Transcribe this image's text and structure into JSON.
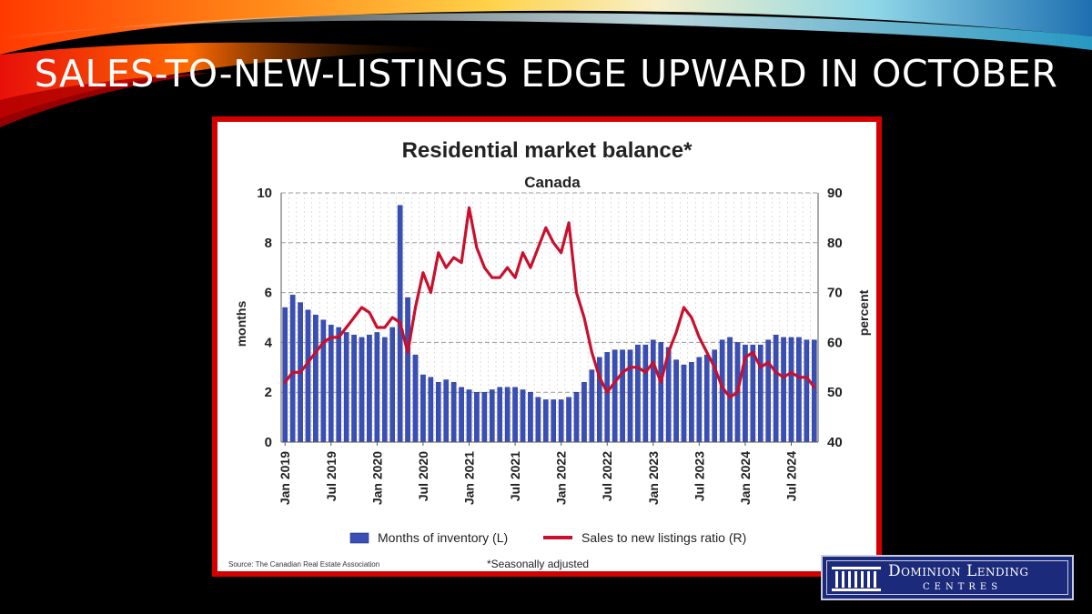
{
  "slide": {
    "title": "SALES-TO-NEW-LISTINGS EDGE UPWARD IN OCTOBER",
    "frame_color": "#d40000"
  },
  "logo": {
    "name": "Dominion Lending",
    "sub": "CENTRES"
  },
  "chart_data": {
    "type": "bar",
    "title": "Residential market balance*",
    "subtitle": "Canada",
    "ylabel_left": "months",
    "ylabel_right": "percent",
    "ylim_left": [
      0,
      10
    ],
    "ylim_right": [
      40,
      90
    ],
    "yticks_left": [
      "0",
      "2",
      "4",
      "6",
      "8",
      "10"
    ],
    "yticks_right": [
      "40",
      "50",
      "60",
      "70",
      "80",
      "90"
    ],
    "grid": true,
    "legend_position": "bottom",
    "x_tick_labels": [
      "Jan 2019",
      "Jul 2019",
      "Jan 2020",
      "Jul 2020",
      "Jan 2021",
      "Jul 2021",
      "Jan 2022",
      "Jul 2022",
      "Jan 2023",
      "Jul 2023",
      "Jan 2024",
      "Jul 2024"
    ],
    "x_tick_positions": [
      0,
      6,
      12,
      18,
      24,
      30,
      36,
      42,
      48,
      54,
      60,
      66
    ],
    "source": "Source: The Canadian Real Estate Association",
    "footnote": "*Seasonally adjusted",
    "series": [
      {
        "name": "Months of inventory (L)",
        "kind": "bar",
        "axis": "left",
        "color": "#3a4fb5",
        "values": [
          5.4,
          5.9,
          5.6,
          5.3,
          5.1,
          4.9,
          4.7,
          4.6,
          4.4,
          4.3,
          4.2,
          4.3,
          4.4,
          4.2,
          4.6,
          9.5,
          5.8,
          3.5,
          2.7,
          2.6,
          2.4,
          2.5,
          2.4,
          2.2,
          2.1,
          2.0,
          2.0,
          2.1,
          2.2,
          2.2,
          2.2,
          2.1,
          2.0,
          1.8,
          1.7,
          1.7,
          1.7,
          1.8,
          2.0,
          2.4,
          2.9,
          3.4,
          3.6,
          3.7,
          3.7,
          3.7,
          3.9,
          3.9,
          4.1,
          4.0,
          3.8,
          3.3,
          3.1,
          3.2,
          3.4,
          3.5,
          3.7,
          4.1,
          4.2,
          4.0,
          3.9,
          3.9,
          3.9,
          4.1,
          4.3,
          4.2,
          4.2,
          4.2,
          4.1,
          4.1
        ]
      },
      {
        "name": "Sales to new listings ratio (R)",
        "kind": "line",
        "axis": "right",
        "color": "#c8102e",
        "values": [
          52,
          54,
          54,
          56,
          58,
          60,
          61,
          61,
          63,
          65,
          67,
          66,
          63,
          63,
          65,
          64,
          58,
          67,
          74,
          70,
          78,
          75,
          77,
          76,
          87,
          79,
          75,
          73,
          73,
          75,
          73,
          78,
          75,
          79,
          83,
          80,
          78,
          84,
          70,
          65,
          58,
          53,
          50,
          52,
          54,
          55,
          55,
          54,
          56,
          52,
          58,
          62,
          67,
          65,
          61,
          58,
          55,
          51,
          49,
          50,
          57,
          58,
          55,
          56,
          54,
          53,
          54,
          53,
          53,
          51
        ]
      }
    ]
  }
}
